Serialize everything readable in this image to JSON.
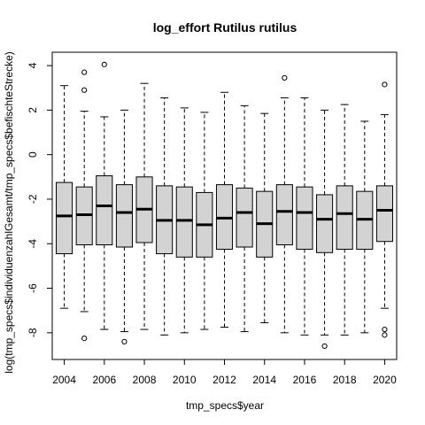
{
  "chart_data": {
    "type": "box",
    "title": "log_effort Rutilus rutilus",
    "xlabel": "tmp_specs$year",
    "ylabel": "log(tmp_specs$individuenzahlGesamt/tmp_specs$befischteStrecke)",
    "ylim": [
      -9.2,
      4.6
    ],
    "y_ticks": [
      4,
      2,
      0,
      -2,
      -4,
      -6,
      -8
    ],
    "x_ticks": [
      "2004",
      "2006",
      "2008",
      "2010",
      "2012",
      "2014",
      "2016",
      "2018",
      "2020"
    ],
    "grid": false,
    "colors": {
      "box_fill": "#d3d3d3",
      "stroke": "#000000",
      "background": "#ffffff"
    },
    "categories": [
      "2004",
      "2005",
      "2006",
      "2007",
      "2008",
      "2009",
      "2010",
      "2011",
      "2012",
      "2013",
      "2014",
      "2015",
      "2016",
      "2017",
      "2018",
      "2019",
      "2020"
    ],
    "boxes": [
      {
        "year": "2004",
        "whisker_low": -6.9,
        "q1": -4.45,
        "median": -2.75,
        "q3": -1.25,
        "whisker_high": 3.1,
        "outliers": []
      },
      {
        "year": "2005",
        "whisker_low": -7.05,
        "q1": -4.05,
        "median": -2.7,
        "q3": -1.45,
        "whisker_high": 1.95,
        "outliers": [
          3.7,
          2.9,
          -8.25
        ]
      },
      {
        "year": "2006",
        "whisker_low": -7.85,
        "q1": -4.05,
        "median": -2.3,
        "q3": -0.95,
        "whisker_high": 1.7,
        "outliers": [
          4.05
        ]
      },
      {
        "year": "2007",
        "whisker_low": -7.95,
        "q1": -4.15,
        "median": -2.6,
        "q3": -1.35,
        "whisker_high": 2.0,
        "outliers": [
          -8.4
        ]
      },
      {
        "year": "2008",
        "whisker_low": -7.85,
        "q1": -3.95,
        "median": -2.45,
        "q3": -1.0,
        "whisker_high": 3.2,
        "outliers": []
      },
      {
        "year": "2009",
        "whisker_low": -8.1,
        "q1": -4.45,
        "median": -2.95,
        "q3": -1.4,
        "whisker_high": 2.55,
        "outliers": []
      },
      {
        "year": "2010",
        "whisker_low": -8.0,
        "q1": -4.6,
        "median": -2.95,
        "q3": -1.45,
        "whisker_high": 2.1,
        "outliers": []
      },
      {
        "year": "2011",
        "whisker_low": -7.85,
        "q1": -4.6,
        "median": -3.15,
        "q3": -1.7,
        "whisker_high": 1.9,
        "outliers": []
      },
      {
        "year": "2012",
        "whisker_low": -7.75,
        "q1": -4.25,
        "median": -2.85,
        "q3": -1.35,
        "whisker_high": 2.8,
        "outliers": []
      },
      {
        "year": "2013",
        "whisker_low": -7.95,
        "q1": -4.15,
        "median": -2.6,
        "q3": -1.5,
        "whisker_high": 2.2,
        "outliers": []
      },
      {
        "year": "2014",
        "whisker_low": -7.55,
        "q1": -4.6,
        "median": -3.1,
        "q3": -1.65,
        "whisker_high": 1.85,
        "outliers": []
      },
      {
        "year": "2015",
        "whisker_low": -8.0,
        "q1": -4.05,
        "median": -2.55,
        "q3": -1.35,
        "whisker_high": 2.55,
        "outliers": [
          3.45
        ]
      },
      {
        "year": "2016",
        "whisker_low": -8.1,
        "q1": -4.25,
        "median": -2.6,
        "q3": -1.45,
        "whisker_high": 2.55,
        "outliers": []
      },
      {
        "year": "2017",
        "whisker_low": -8.1,
        "q1": -4.4,
        "median": -2.9,
        "q3": -1.8,
        "whisker_high": 2.0,
        "outliers": [
          -8.6
        ]
      },
      {
        "year": "2018",
        "whisker_low": -8.1,
        "q1": -4.25,
        "median": -2.65,
        "q3": -1.4,
        "whisker_high": 2.25,
        "outliers": []
      },
      {
        "year": "2019",
        "whisker_low": -8.0,
        "q1": -4.25,
        "median": -2.9,
        "q3": -1.65,
        "whisker_high": 1.5,
        "outliers": []
      },
      {
        "year": "2020",
        "whisker_low": -6.9,
        "q1": -3.9,
        "median": -2.5,
        "q3": -1.4,
        "whisker_high": 1.8,
        "outliers": [
          3.15,
          -7.85,
          -8.1
        ]
      }
    ]
  }
}
